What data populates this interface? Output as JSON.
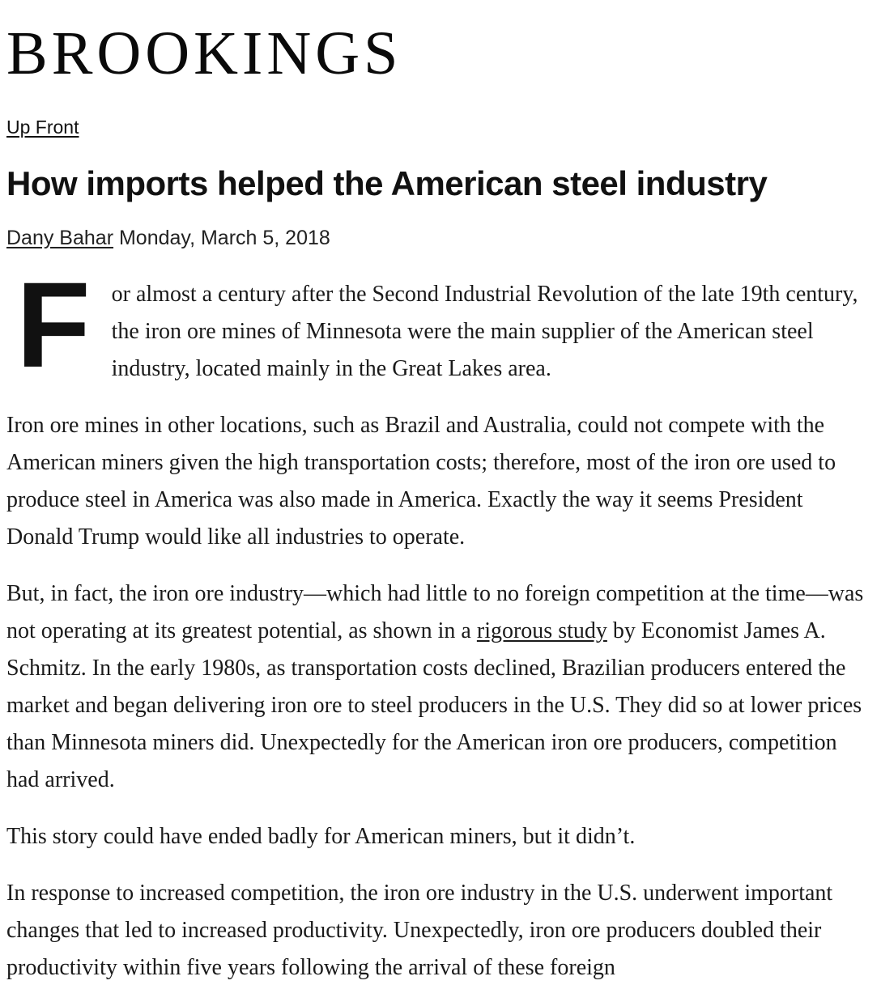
{
  "brand": {
    "logo_text": "BROOKINGS"
  },
  "nav": {
    "section_label": "Up Front"
  },
  "article": {
    "title": "How imports helped the American steel industry",
    "author": "Dany Bahar",
    "date": "Monday, March 5, 2018",
    "paragraphs": [
      {
        "drop_cap": "F",
        "segments": [
          {
            "type": "text",
            "text": "or almost a century after the Second Industrial Revolution of the late 19th century, the iron ore mines of Minnesota were the main supplier of the American steel industry, located mainly in the Great Lakes area."
          }
        ]
      },
      {
        "segments": [
          {
            "type": "text",
            "text": "Iron ore mines in other locations, such as Brazil and Australia, could not compete with the American miners given the high transportation costs; therefore, most of the iron ore used to produce steel in America was also made in America. Exactly the way it seems President Donald Trump would like all industries to operate."
          }
        ]
      },
      {
        "segments": [
          {
            "type": "text",
            "text": "But, in fact, the iron ore industry—which had little to no foreign competition at the time—was not operating at its greatest potential, as shown in a "
          },
          {
            "type": "link",
            "name": "rigorous-study-link",
            "text": "rigorous study"
          },
          {
            "type": "text",
            "text": " by Economist James A. Schmitz. In the early 1980s, as transportation costs declined, Brazilian producers entered the market and began delivering iron ore to steel producers in the U.S. They did so at lower prices than Minnesota miners did. Unexpectedly for the American iron ore producers, competition had arrived."
          }
        ]
      },
      {
        "segments": [
          {
            "type": "text",
            "text": "This story could have ended badly for American miners, but it didn’t."
          }
        ]
      },
      {
        "segments": [
          {
            "type": "text",
            "text": "In response to increased competition, the iron ore industry in the U.S. underwent important changes that led to increased productivity. Unexpectedly, iron ore producers doubled their productivity within five years following the arrival of these foreign"
          }
        ]
      }
    ]
  },
  "colors": {
    "text": "#1a1a1a",
    "heading": "#111111",
    "background": "#ffffff"
  }
}
